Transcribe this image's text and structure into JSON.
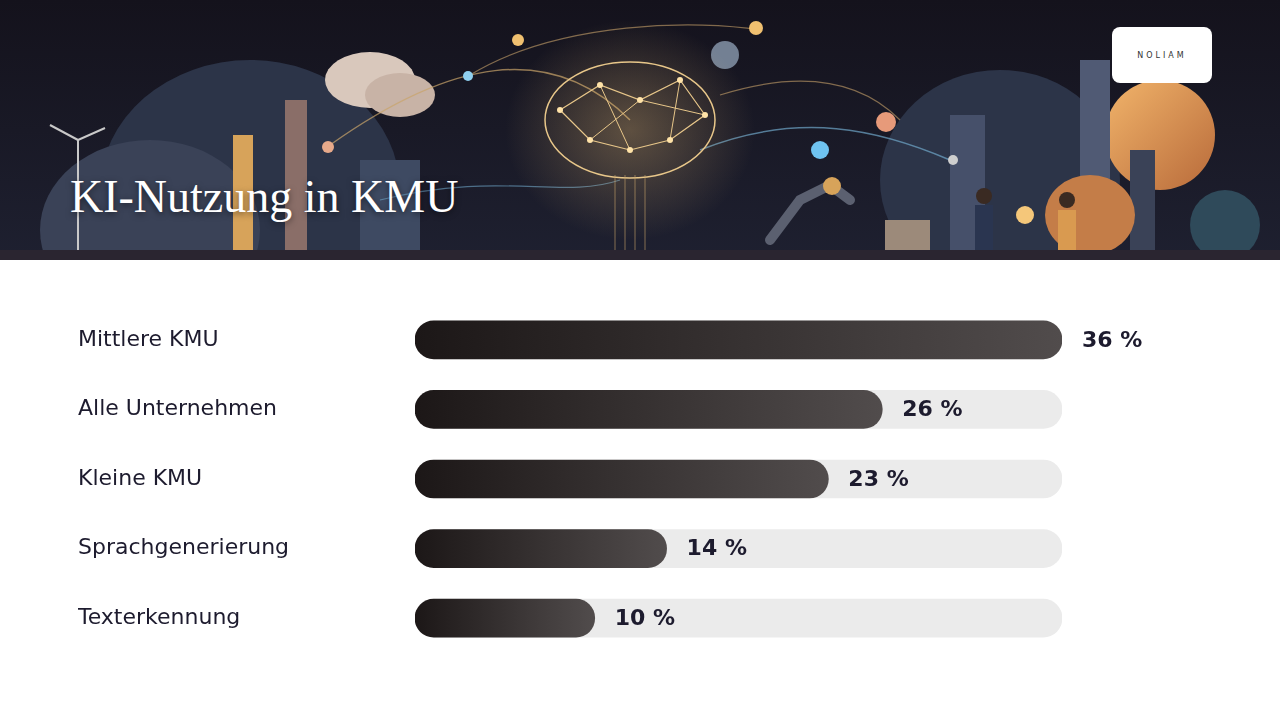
{
  "logo": "NOLIAM",
  "chart_data": {
    "type": "bar",
    "orientation": "horizontal",
    "title": "KI-Nutzung in KMU",
    "categories": [
      "Mittlere KMU",
      "Alle Unternehmen",
      "Kleine KMU",
      "Sprachgenerierung",
      "Texterkennung"
    ],
    "values": [
      36,
      26,
      23,
      14,
      10
    ],
    "value_labels": [
      "36 %",
      "26 %",
      "23 %",
      "14 %",
      "10 %"
    ],
    "data_labels": true,
    "color": "#2b2525",
    "xlim": [
      0,
      36
    ],
    "grid": false,
    "tick_labels": "y"
  }
}
